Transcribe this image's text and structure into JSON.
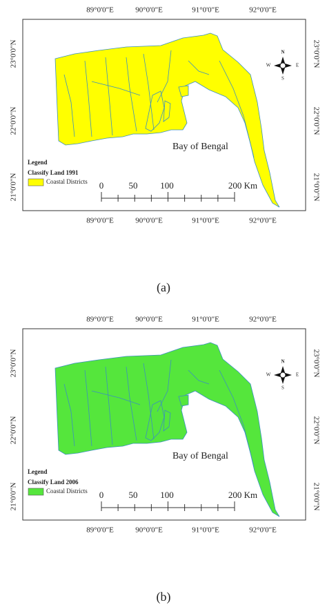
{
  "panels": [
    {
      "top_labels": [
        "89°0'0\"E",
        "90°0'0\"E",
        "91°0'0\"E",
        "92°0'0\"E"
      ],
      "bottom_labels": [
        "89°0'0\"E",
        "90°0'0\"E",
        "91°0'0\"E",
        "92°0'0\"E"
      ],
      "left_labels": [
        "23°0'0\"N",
        "22°0'0\"N",
        "21°0'0\"N"
      ],
      "right_labels": [
        "23°0'0\"N",
        "22°0'0\"N",
        "21°0'0\"N"
      ],
      "compass": {
        "n": "N",
        "s": "S",
        "e": "E",
        "w": "W"
      },
      "sea_label": "Bay of Bengal",
      "legend": {
        "title": "Legend",
        "subtitle": "Classify Land 1991",
        "item": "Coastal Districts"
      },
      "scale_labels": [
        "0",
        "50",
        "100",
        "200 Km"
      ],
      "land_color": "#ffff00",
      "caption": "(a)"
    },
    {
      "top_labels": [
        "89°0'0\"E",
        "90°0'0\"E",
        "91°0'0\"E",
        "92°0'0\"E"
      ],
      "bottom_labels": [
        "89°0'0\"E",
        "90°0'0\"E",
        "91°0'0\"E",
        "92°0'0\"E"
      ],
      "left_labels": [
        "23°0'0\"N",
        "22°0'0\"N",
        "21°0'0\"N"
      ],
      "right_labels": [
        "23°0'0\"N",
        "22°0'0\"N",
        "21°0'0\"N"
      ],
      "compass": {
        "n": "N",
        "s": "S",
        "e": "E",
        "w": "W"
      },
      "sea_label": "Bay of Bengal",
      "legend": {
        "title": "Legend",
        "subtitle": "Classify Land 2006",
        "item": "Coastal Districts"
      },
      "scale_labels": [
        "0",
        "50",
        "100",
        "200 Km"
      ],
      "land_color": "#55e63c",
      "caption": "(b)"
    }
  ]
}
